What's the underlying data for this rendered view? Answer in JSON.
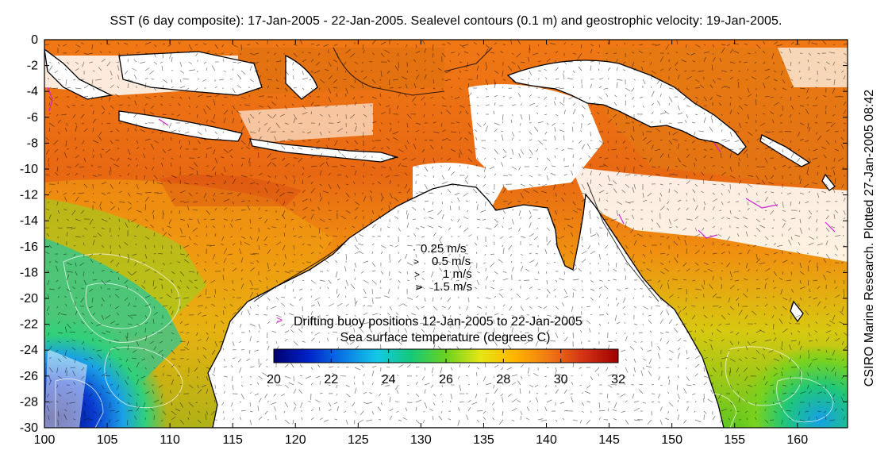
{
  "title": "SST (6 day composite): 17-Jan-2005 - 22-Jan-2005. Sealevel contours (0.1 m) and geostrophic velocity: 19-Jan-2005.",
  "side_label": "CSIRO Marine Research. Plotted 27-Jan-2005 08:42",
  "axes": {
    "x": {
      "min": 100,
      "max": 164,
      "ticks": [
        100,
        105,
        110,
        115,
        120,
        125,
        130,
        135,
        140,
        145,
        150,
        155,
        160
      ]
    },
    "y": {
      "min": -30,
      "max": 0,
      "ticks": [
        0,
        -2,
        -4,
        -6,
        -8,
        -10,
        -12,
        -14,
        -16,
        -18,
        -20,
        -22,
        -24,
        -26,
        -28,
        -30
      ]
    }
  },
  "velocity_legend": [
    {
      "speed": "0.25 m/s",
      "glyph": "·"
    },
    {
      "speed": "0.5 m/s",
      "glyph": "˃"
    },
    {
      "speed": "1 m/s",
      "glyph": ">"
    },
    {
      "speed": "1.5 m/s",
      "glyph": "⋗"
    }
  ],
  "buoy_legend": {
    "label": "Drifting buoy positions 12-Jan-2005 to 22-Jan-2005",
    "color": "#d020d0"
  },
  "colorbar": {
    "label": "Sea surface temperature (degrees C)",
    "min": 20,
    "max": 32,
    "ticks": [
      "20",
      "22",
      "24",
      "26",
      "28",
      "30",
      "32"
    ],
    "stops": [
      "#00006e",
      "#0022c8",
      "#0a78e6",
      "#12c8e6",
      "#14c878",
      "#6ad21e",
      "#e6e614",
      "#ffb400",
      "#f07814",
      "#d23214",
      "#a00000"
    ]
  },
  "colors": {
    "land": "#ffffff",
    "coast": "#000000",
    "velocity_vector": "#000000",
    "sealevel_contour": "#ffffff"
  }
}
